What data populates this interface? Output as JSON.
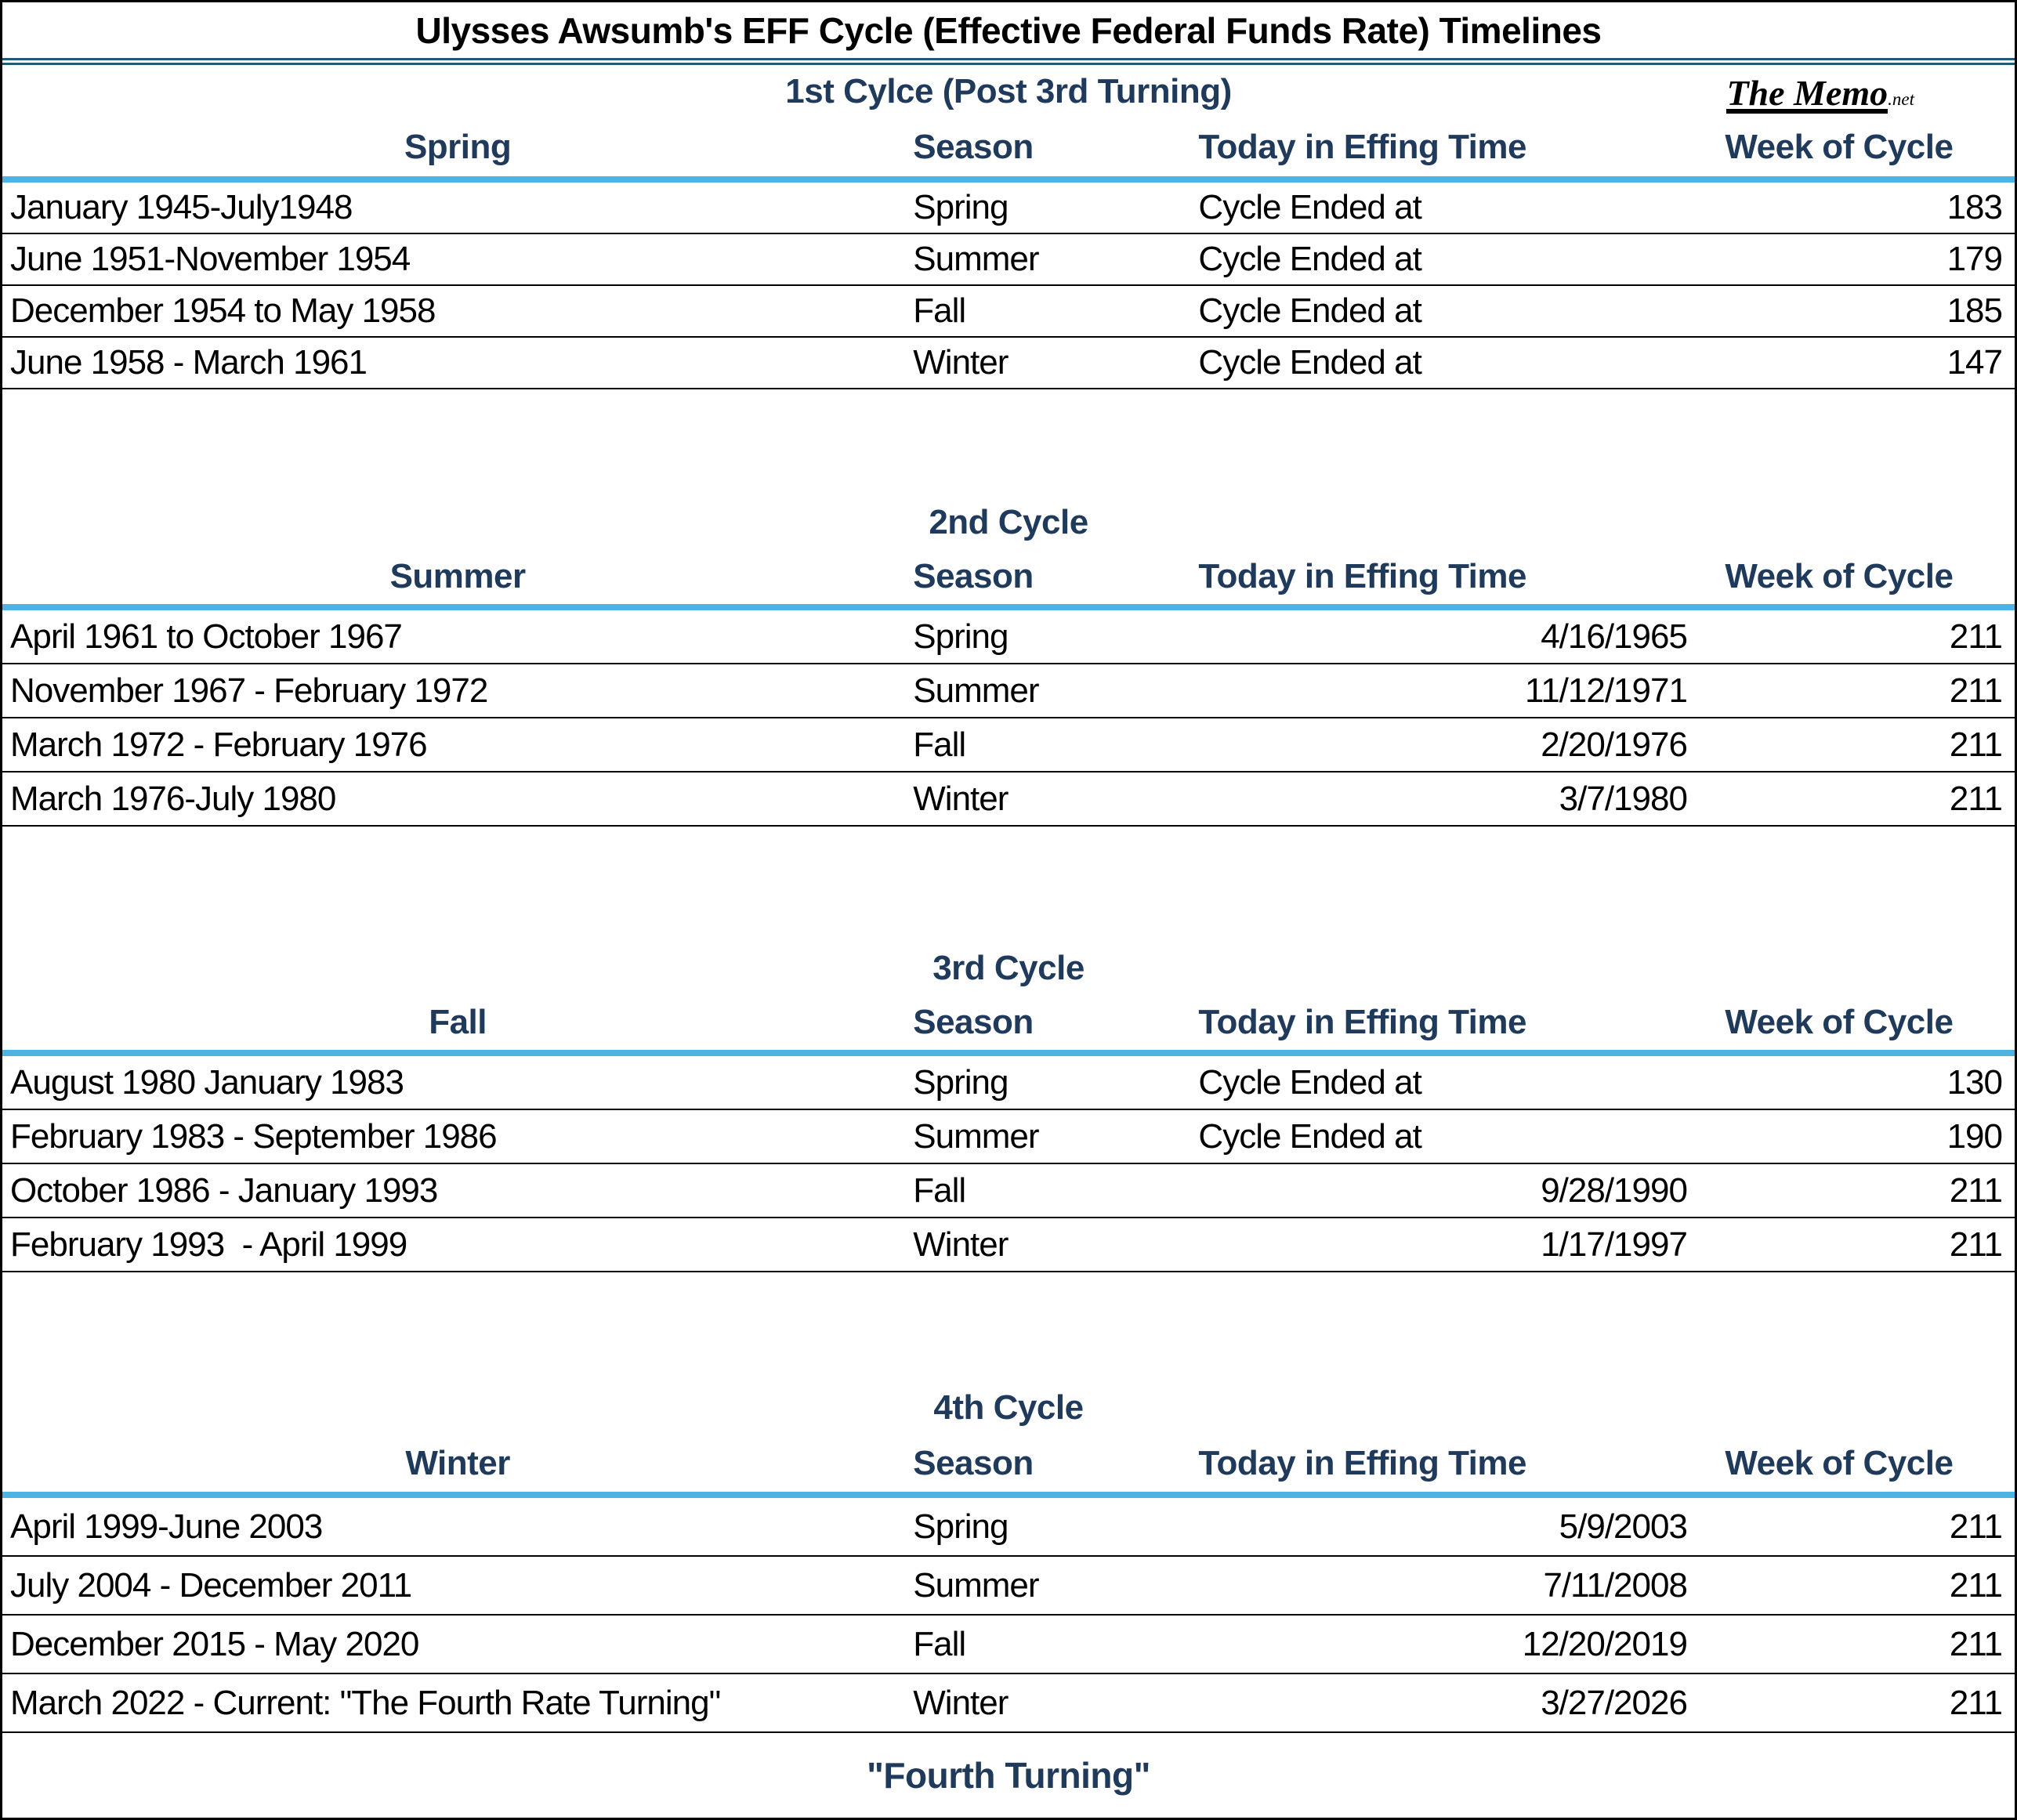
{
  "title": "Ulysses Awsumb's EFF Cycle (Effective Federal Funds Rate) Timelines",
  "logo": {
    "text": "The Memo",
    "tld": ".net"
  },
  "footer": "\"Fourth Turning\"",
  "colors": {
    "header_text": "#1f3a5a",
    "header_underline": "#4db3e3",
    "title_divider": "#1f5b74",
    "row_separator": "#000000",
    "body_text": "#000000"
  },
  "sections": [
    {
      "cycle_title": "1st Cylce (Post 3rd Turning)",
      "columns": [
        "Spring",
        "Season",
        "Today in Effing Time",
        "Week of Cycle"
      ],
      "rows": [
        {
          "period": "January 1945-July1948",
          "season": "Spring",
          "today": "Cycle Ended at",
          "week": "183"
        },
        {
          "period": "June 1951-November 1954",
          "season": "Summer",
          "today": "Cycle Ended at",
          "week": "179"
        },
        {
          "period": "December 1954 to May 1958",
          "season": "Fall",
          "today": "Cycle Ended at",
          "week": "185"
        },
        {
          "period": "June 1958 - March 1961",
          "season": "Winter",
          "today": "Cycle Ended at",
          "week": "147"
        }
      ]
    },
    {
      "cycle_title": "2nd Cycle",
      "columns": [
        "Summer",
        "Season",
        "Today in Effing Time",
        "Week of Cycle"
      ],
      "rows": [
        {
          "period": "April 1961 to October 1967",
          "season": "Spring",
          "today": "4/16/1965",
          "week": "211"
        },
        {
          "period": "November 1967 - February 1972",
          "season": "Summer",
          "today": "11/12/1971",
          "week": "211"
        },
        {
          "period": "March 1972 - February 1976",
          "season": "Fall",
          "today": "2/20/1976",
          "week": "211"
        },
        {
          "period": "March 1976-July 1980",
          "season": "Winter",
          "today": "3/7/1980",
          "week": "211"
        }
      ]
    },
    {
      "cycle_title": "3rd Cycle",
      "columns": [
        "Fall",
        "Season",
        "Today in Effing Time",
        "Week of Cycle"
      ],
      "rows": [
        {
          "period": "August 1980 January 1983",
          "season": "Spring",
          "today": "Cycle Ended at",
          "week": "130"
        },
        {
          "period": "February 1983 - September 1986",
          "season": "Summer",
          "today": "Cycle Ended at",
          "week": "190"
        },
        {
          "period": "October 1986 - January 1993",
          "season": "Fall",
          "today": "9/28/1990",
          "week": "211"
        },
        {
          "period": "February 1993  - April 1999",
          "season": "Winter",
          "today": "1/17/1997",
          "week": "211"
        }
      ]
    },
    {
      "cycle_title": "4th Cycle",
      "columns": [
        "Winter",
        "Season",
        "Today in Effing Time",
        "Week of Cycle"
      ],
      "rows": [
        {
          "period": "April 1999-June 2003",
          "season": "Spring",
          "today": "5/9/2003",
          "week": "211"
        },
        {
          "period": "July 2004 - December 2011",
          "season": "Summer",
          "today": "7/11/2008",
          "week": "211"
        },
        {
          "period": "December 2015 - May 2020",
          "season": "Fall",
          "today": "12/20/2019",
          "week": "211"
        },
        {
          "period": "March 2022 - Current: \"The Fourth Rate Turning\"",
          "season": "Winter",
          "today": "3/27/2026",
          "week": "211"
        }
      ]
    }
  ]
}
